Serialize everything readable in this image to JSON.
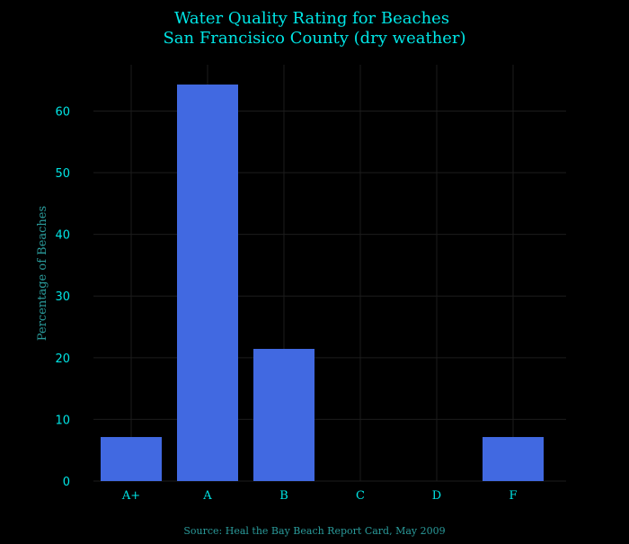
{
  "colors": {
    "background": "#000000",
    "title": "#00e5e5",
    "tick_text": "#00e5e5",
    "ylabel": "#2a9a9a",
    "source": "#2a9a9a",
    "grid": "#1c1c1c",
    "bar": "#4169e1"
  },
  "chart_data": {
    "type": "bar",
    "title_lines": [
      "Water Quality Rating for Beaches",
      "San Francisico County (dry weather)"
    ],
    "xlabel": "",
    "ylabel": "Percentage of Beaches",
    "categories": [
      "A+",
      "A",
      "B",
      "C",
      "D",
      "F"
    ],
    "values": [
      7.14,
      64.29,
      21.43,
      0,
      0,
      7.14
    ],
    "ylim": [
      0,
      67.5
    ],
    "yticks": [
      0,
      10,
      20,
      30,
      40,
      50,
      60
    ],
    "grid": true,
    "source": "Source: Heal the Bay Beach Report Card, May 2009"
  }
}
